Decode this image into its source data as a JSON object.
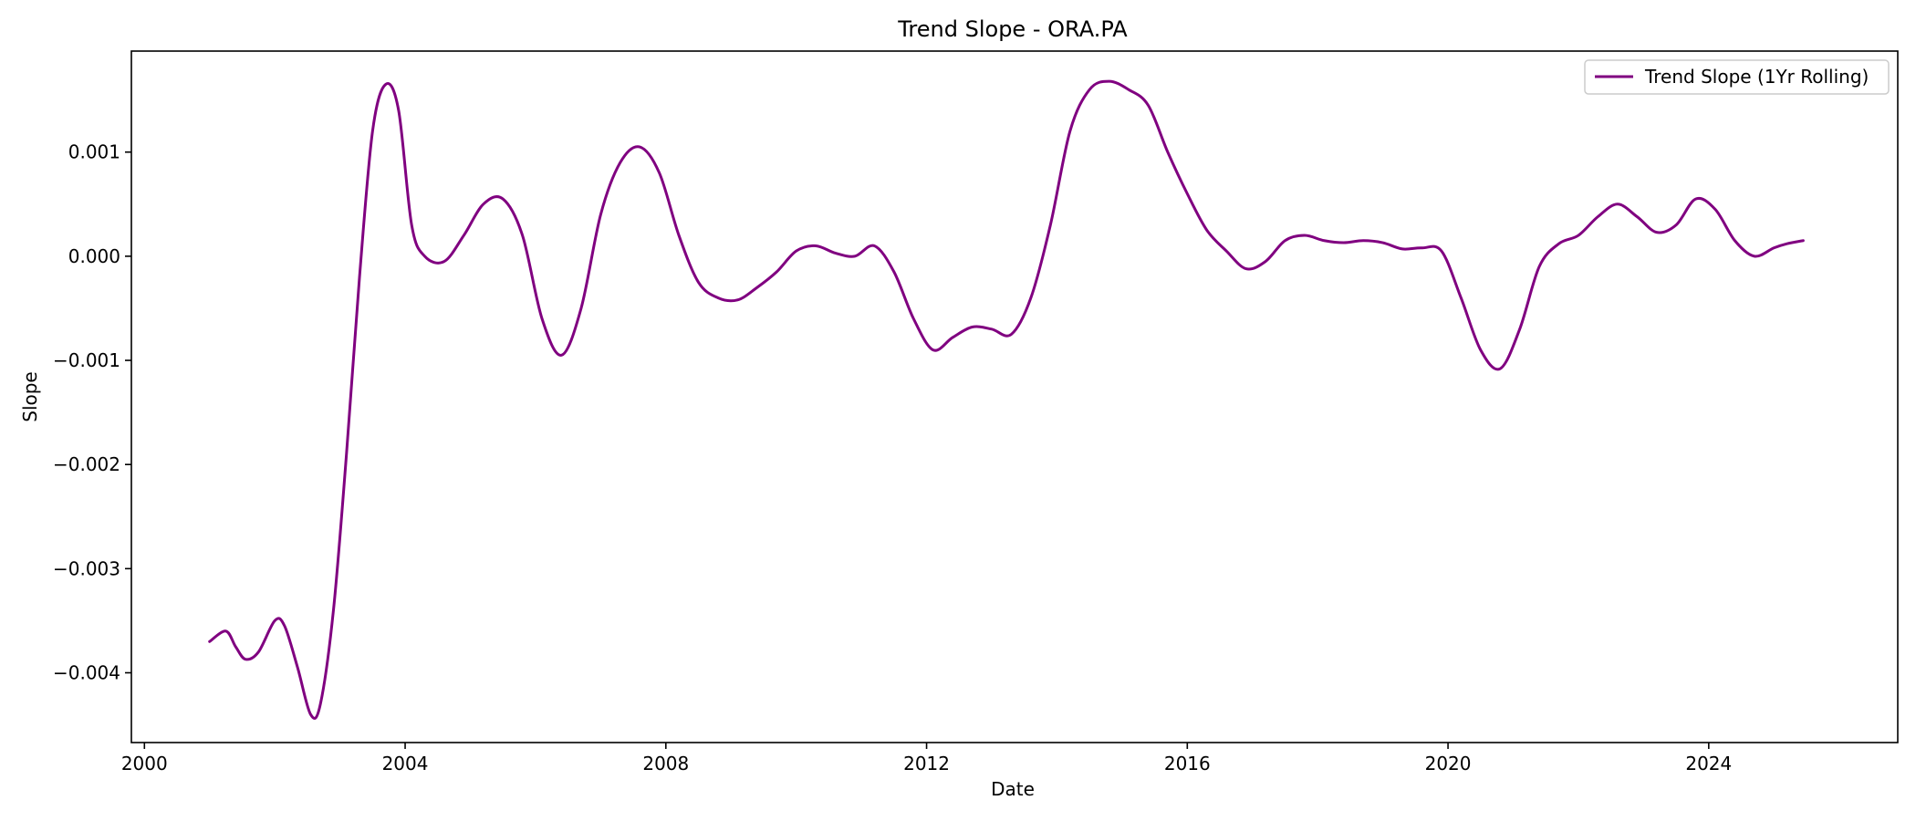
{
  "chart_data": {
    "type": "line",
    "title": "Trend Slope - ORA.PA",
    "xlabel": "Date",
    "ylabel": "Slope",
    "xlim": [
      1999.8,
      2026.9
    ],
    "ylim": [
      -0.00467,
      0.00197
    ],
    "x_ticks": [
      {
        "value": 2000,
        "label": "2000"
      },
      {
        "value": 2004,
        "label": "2004"
      },
      {
        "value": 2008,
        "label": "2008"
      },
      {
        "value": 2012,
        "label": "2012"
      },
      {
        "value": 2016,
        "label": "2016"
      },
      {
        "value": 2020,
        "label": "2020"
      },
      {
        "value": 2024,
        "label": "2024"
      }
    ],
    "y_ticks": [
      {
        "value": 0.001,
        "label": "0.001"
      },
      {
        "value": 0.0,
        "label": "0.000"
      },
      {
        "value": -0.001,
        "label": "−0.001"
      },
      {
        "value": -0.002,
        "label": "−0.002"
      },
      {
        "value": -0.003,
        "label": "−0.003"
      },
      {
        "value": -0.004,
        "label": "−0.004"
      }
    ],
    "grid": false,
    "legend_position": "top-right",
    "series": [
      {
        "name": "Trend Slope (1Yr Rolling)",
        "color": "#800080",
        "x": [
          2001.0,
          2001.25,
          2001.4,
          2001.55,
          2001.75,
          2002.0,
          2002.15,
          2002.35,
          2002.55,
          2002.7,
          2002.9,
          2003.1,
          2003.3,
          2003.5,
          2003.7,
          2003.9,
          2004.1,
          2004.3,
          2004.6,
          2004.9,
          2005.2,
          2005.5,
          2005.8,
          2006.1,
          2006.4,
          2006.7,
          2007.0,
          2007.3,
          2007.6,
          2007.9,
          2008.2,
          2008.5,
          2008.8,
          2009.1,
          2009.4,
          2009.7,
          2010.0,
          2010.3,
          2010.6,
          2010.9,
          2011.2,
          2011.5,
          2011.8,
          2012.1,
          2012.4,
          2012.7,
          2013.0,
          2013.3,
          2013.6,
          2013.9,
          2014.2,
          2014.5,
          2014.8,
          2015.1,
          2015.4,
          2015.7,
          2016.0,
          2016.3,
          2016.6,
          2016.9,
          2017.2,
          2017.5,
          2017.8,
          2018.1,
          2018.4,
          2018.7,
          2019.0,
          2019.3,
          2019.6,
          2019.9,
          2020.2,
          2020.5,
          2020.8,
          2021.1,
          2021.4,
          2021.7,
          2022.0,
          2022.3,
          2022.6,
          2022.9,
          2023.2,
          2023.5,
          2023.8,
          2024.1,
          2024.4,
          2024.7,
          2025.0,
          2025.2,
          2025.45
        ],
        "values": [
          -0.0037,
          -0.0036,
          -0.00375,
          -0.00387,
          -0.0038,
          -0.0035,
          -0.00355,
          -0.00395,
          -0.0044,
          -0.0043,
          -0.0034,
          -0.0019,
          -0.0002,
          0.0012,
          0.00165,
          0.0014,
          0.0003,
          0.0,
          -5e-05,
          0.0002,
          0.0005,
          0.00055,
          0.0002,
          -0.0006,
          -0.00095,
          -0.0005,
          0.0004,
          0.0009,
          0.00105,
          0.0008,
          0.0002,
          -0.00025,
          -0.0004,
          -0.00042,
          -0.0003,
          -0.00015,
          5e-05,
          0.0001,
          3e-05,
          0.0,
          0.0001,
          -0.00015,
          -0.0006,
          -0.0009,
          -0.00078,
          -0.00068,
          -0.0007,
          -0.00075,
          -0.0004,
          0.0003,
          0.0012,
          0.0016,
          0.00168,
          0.0016,
          0.00145,
          0.001,
          0.0006,
          0.00025,
          5e-05,
          -0.00012,
          -5e-05,
          0.00015,
          0.0002,
          0.00015,
          0.00013,
          0.00015,
          0.00013,
          7e-05,
          8e-05,
          5e-05,
          -0.0004,
          -0.0009,
          -0.00108,
          -0.0007,
          -0.0001,
          0.00012,
          0.0002,
          0.00038,
          0.0005,
          0.00038,
          0.00023,
          0.0003,
          0.00055,
          0.00045,
          0.00015,
          0.0,
          8e-05,
          0.00012,
          0.00015
        ]
      }
    ]
  }
}
